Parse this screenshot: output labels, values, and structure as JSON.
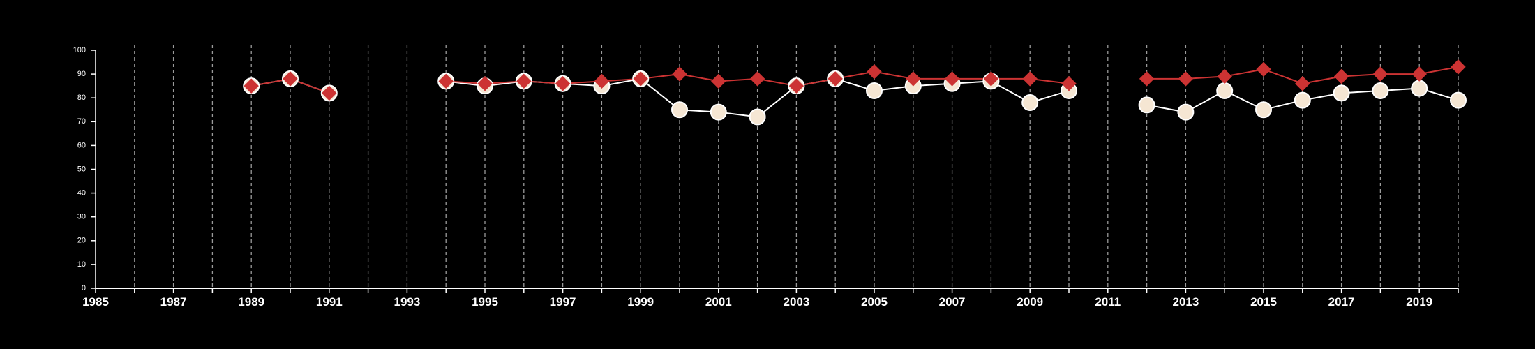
{
  "chart_data": {
    "type": "line",
    "title": "",
    "xlabel": "",
    "ylabel": "",
    "xlim": [
      1985,
      2020
    ],
    "ylim": [
      0,
      100
    ],
    "yticks": [
      0,
      10,
      20,
      30,
      40,
      50,
      60,
      70,
      80,
      90,
      100
    ],
    "xtick_labels": [
      "1985",
      "1987",
      "1989",
      "1991",
      "1993",
      "1995",
      "1997",
      "1999",
      "2001",
      "2003",
      "2005",
      "2007",
      "2009",
      "2011",
      "2013",
      "2015",
      "2017",
      "2019"
    ],
    "grid": "vertical dashed lines at every year",
    "colors": {
      "background": "#000000",
      "axis": "#ffffff",
      "grid": "#9a9a9a",
      "series_red": "#cc3333",
      "series_cream": "#f5e6d3"
    },
    "series": [
      {
        "marker": "circle",
        "color": "#f5e6d3",
        "points": [
          {
            "x": 1989,
            "y": 85
          },
          {
            "x": 1990,
            "y": 88
          },
          {
            "x": 1991,
            "y": 82
          },
          {
            "x": 1994,
            "y": 87
          },
          {
            "x": 1995,
            "y": 85
          },
          {
            "x": 1996,
            "y": 87
          },
          {
            "x": 1997,
            "y": 86
          },
          {
            "x": 1998,
            "y": 85
          },
          {
            "x": 1999,
            "y": 88
          },
          {
            "x": 2000,
            "y": 75
          },
          {
            "x": 2001,
            "y": 74
          },
          {
            "x": 2002,
            "y": 72
          },
          {
            "x": 2003,
            "y": 85
          },
          {
            "x": 2004,
            "y": 88
          },
          {
            "x": 2005,
            "y": 83
          },
          {
            "x": 2006,
            "y": 85
          },
          {
            "x": 2007,
            "y": 86
          },
          {
            "x": 2008,
            "y": 87
          },
          {
            "x": 2009,
            "y": 78
          },
          {
            "x": 2010,
            "y": 83
          },
          {
            "x": 2012,
            "y": 77
          },
          {
            "x": 2013,
            "y": 74
          },
          {
            "x": 2014,
            "y": 83
          },
          {
            "x": 2015,
            "y": 75
          },
          {
            "x": 2016,
            "y": 79
          },
          {
            "x": 2017,
            "y": 82
          },
          {
            "x": 2018,
            "y": 83
          },
          {
            "x": 2019,
            "y": 84
          },
          {
            "x": 2020,
            "y": 79
          }
        ]
      },
      {
        "marker": "diamond",
        "color": "#cc3333",
        "points": [
          {
            "x": 1989,
            "y": 85
          },
          {
            "x": 1990,
            "y": 88
          },
          {
            "x": 1991,
            "y": 82
          },
          {
            "x": 1994,
            "y": 87
          },
          {
            "x": 1995,
            "y": 86
          },
          {
            "x": 1996,
            "y": 87
          },
          {
            "x": 1997,
            "y": 86
          },
          {
            "x": 1998,
            "y": 87
          },
          {
            "x": 1999,
            "y": 88
          },
          {
            "x": 2000,
            "y": 90
          },
          {
            "x": 2001,
            "y": 87
          },
          {
            "x": 2002,
            "y": 88
          },
          {
            "x": 2003,
            "y": 85
          },
          {
            "x": 2004,
            "y": 88
          },
          {
            "x": 2005,
            "y": 91
          },
          {
            "x": 2006,
            "y": 88
          },
          {
            "x": 2007,
            "y": 88
          },
          {
            "x": 2008,
            "y": 88
          },
          {
            "x": 2009,
            "y": 88
          },
          {
            "x": 2010,
            "y": 86
          },
          {
            "x": 2012,
            "y": 88
          },
          {
            "x": 2013,
            "y": 88
          },
          {
            "x": 2014,
            "y": 89
          },
          {
            "x": 2015,
            "y": 92
          },
          {
            "x": 2016,
            "y": 86
          },
          {
            "x": 2017,
            "y": 89
          },
          {
            "x": 2018,
            "y": 90
          },
          {
            "x": 2019,
            "y": 90
          },
          {
            "x": 2020,
            "y": 93
          }
        ]
      }
    ]
  }
}
